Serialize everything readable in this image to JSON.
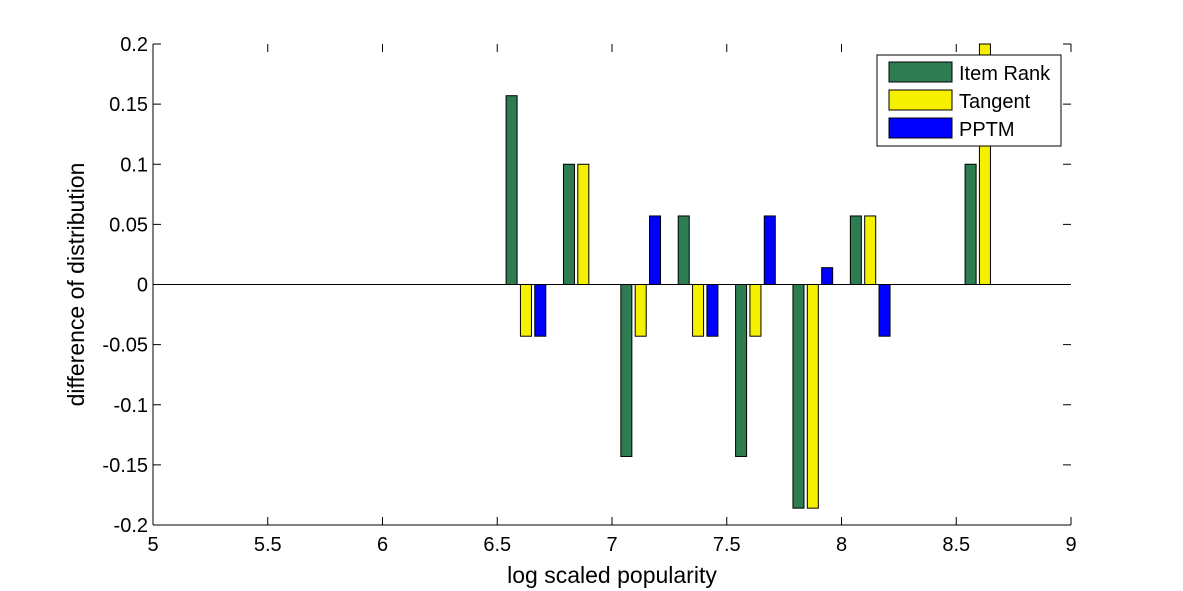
{
  "chart_data": {
    "type": "bar",
    "xlabel": "log scaled popularity",
    "ylabel": "difference of distribution",
    "xlim": [
      5,
      9
    ],
    "ylim": [
      -0.2,
      0.2
    ],
    "x_ticks": [
      "5",
      "5.5",
      "6",
      "6.5",
      "7",
      "7.5",
      "8",
      "8.5",
      "9"
    ],
    "y_ticks": [
      "0.2",
      "0.15",
      "0.1",
      "0.05",
      "0",
      "-0.05",
      "-0.1",
      "-0.15",
      "-0.2"
    ],
    "x": [
      6.625,
      6.875,
      7.125,
      7.375,
      7.625,
      7.875,
      8.125,
      8.625
    ],
    "grid": false,
    "legend_position": "top-right",
    "series": [
      {
        "name": "Item Rank",
        "color": "#2e7d52",
        "values": [
          0.157,
          0.1,
          -0.143,
          0.057,
          -0.143,
          -0.186,
          0.057,
          0.1
        ]
      },
      {
        "name": "Tangent",
        "color": "#f5f000",
        "values": [
          -0.043,
          0.1,
          -0.043,
          -0.043,
          -0.043,
          -0.186,
          0.057,
          0.2
        ]
      },
      {
        "name": "PPTM",
        "color": "#0000ff",
        "values": [
          -0.043,
          null,
          0.057,
          -0.043,
          0.057,
          0.014,
          -0.043,
          null
        ]
      }
    ]
  }
}
